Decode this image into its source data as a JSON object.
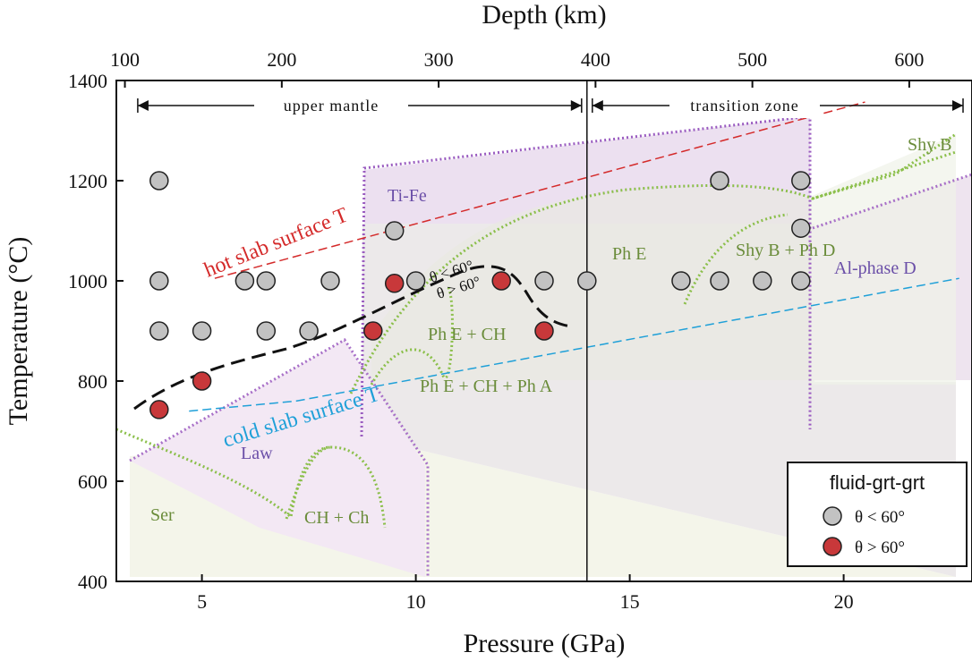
{
  "chart_data": {
    "type": "scatter",
    "xlabel": "Pressure (GPa)",
    "ylabel": "Temperature (°C)",
    "x2label": "Depth (km)",
    "xlim": [
      3,
      23
    ],
    "ylim": [
      400,
      1400
    ],
    "xticks": [
      5,
      10,
      15,
      20
    ],
    "yticks": [
      400,
      600,
      800,
      1000,
      1200,
      1400
    ],
    "depth_ticks": [
      100,
      200,
      300,
      400,
      500,
      600
    ],
    "series": [
      {
        "name": "θ < 60°",
        "color": "#c2c2c2",
        "points": [
          [
            4,
            1200
          ],
          [
            4,
            1000
          ],
          [
            4,
            900
          ],
          [
            5,
            900
          ],
          [
            6,
            1000
          ],
          [
            6.5,
            1000
          ],
          [
            6.5,
            900
          ],
          [
            7.5,
            900
          ],
          [
            8,
            1000
          ],
          [
            9.5,
            1100
          ],
          [
            10,
            1000
          ],
          [
            13,
            1000
          ],
          [
            14,
            1000
          ],
          [
            16.2,
            1000
          ],
          [
            17.1,
            1200
          ],
          [
            17.1,
            1000
          ],
          [
            18.1,
            1000
          ],
          [
            19,
            1200
          ],
          [
            19,
            1105
          ],
          [
            19,
            1000
          ]
        ]
      },
      {
        "name": "θ > 60°",
        "color": "#c8383a",
        "points": [
          [
            4,
            743
          ],
          [
            5,
            800
          ],
          [
            9,
            900
          ],
          [
            9.5,
            995
          ],
          [
            12,
            1000
          ],
          [
            13,
            900
          ]
        ]
      }
    ],
    "boundary_labels": [
      "θ < 60°",
      "θ > 60°"
    ],
    "zones": [
      "upper mantle",
      "transition zone"
    ],
    "slab_lines": {
      "hot": {
        "label": "hot slab surface T",
        "color": "#d42a2a",
        "points": [
          [
            5.3,
            1005
          ],
          [
            20.5,
            1357
          ]
        ]
      },
      "cold": {
        "label": "cold slab surface T",
        "color": "#1fa0d8",
        "points": [
          [
            4.7,
            740
          ],
          [
            7.2,
            760
          ],
          [
            22.7,
            1005
          ]
        ]
      }
    },
    "phase_labels": [
      {
        "text": "Ti-Fe",
        "color": "#6b4fa8"
      },
      {
        "text": "Ph E",
        "color": "#6a8c3a"
      },
      {
        "text": "Shy B + Ph D",
        "color": "#6a8c3a"
      },
      {
        "text": "Al-phase D",
        "color": "#6b4fa8"
      },
      {
        "text": "Shy B",
        "color": "#6a8c3a"
      },
      {
        "text": "Ph E + CH",
        "color": "#6a8c3a"
      },
      {
        "text": "Ph E + CH + Ph A",
        "color": "#6a8c3a"
      },
      {
        "text": "Law",
        "color": "#6b4fa8"
      },
      {
        "text": "Ser",
        "color": "#6a8c3a"
      },
      {
        "text": "CH + Ch",
        "color": "#6a8c3a"
      }
    ],
    "legend": {
      "title": "fluid-grt-grt",
      "placement": "bottom-right"
    },
    "grid": false
  }
}
